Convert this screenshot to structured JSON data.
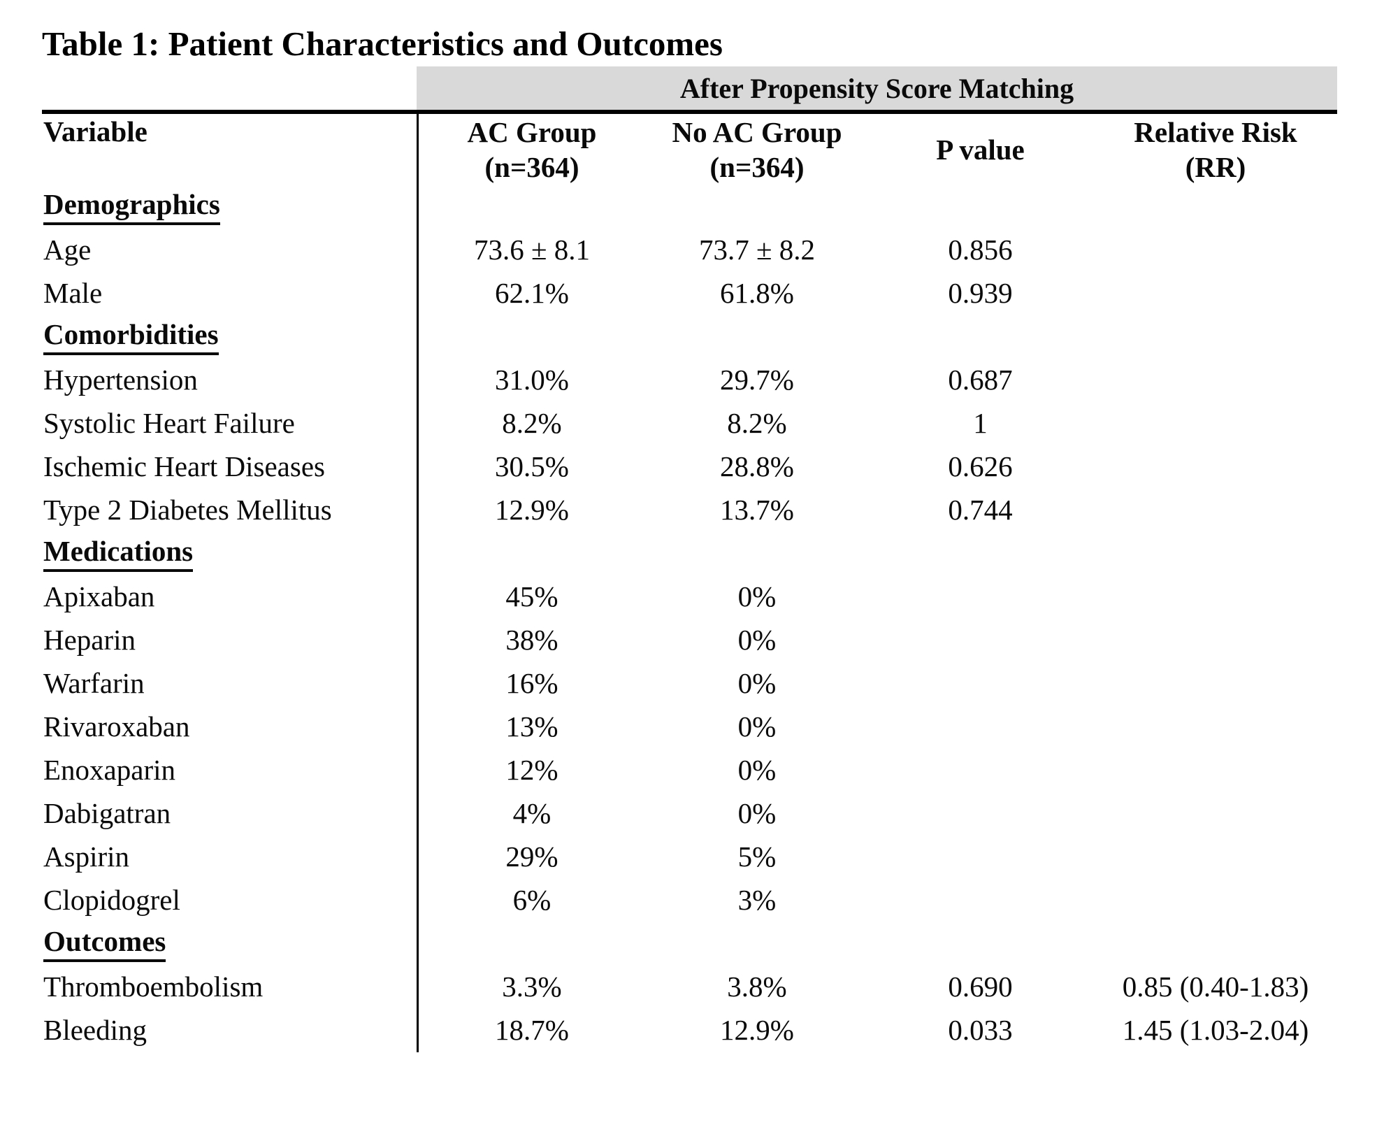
{
  "title": "Table 1: Patient Characteristics and Outcomes",
  "table": {
    "band_label": "After Propensity Score Matching",
    "band_bg": "#d9d9d9",
    "line_color": "#000000",
    "columns": {
      "variable": "Variable",
      "ac_line1": "AC Group",
      "ac_line2": "(n=364)",
      "noac_line1": "No AC Group",
      "noac_line2": "(n=364)",
      "p": "P value",
      "rr_line1": "Relative Risk",
      "rr_line2": "(RR)"
    },
    "rows": [
      {
        "type": "section",
        "label": "Demographics",
        "ac": "",
        "noac": "",
        "p": "",
        "rr": ""
      },
      {
        "type": "data",
        "label": "Age",
        "ac": "73.6 ± 8.1",
        "noac": "73.7 ± 8.2",
        "p": "0.856",
        "rr": ""
      },
      {
        "type": "data",
        "label": "Male",
        "ac": "62.1%",
        "noac": "61.8%",
        "p": "0.939",
        "rr": ""
      },
      {
        "type": "section",
        "label": "Comorbidities",
        "ac": "",
        "noac": "",
        "p": "",
        "rr": ""
      },
      {
        "type": "data",
        "label": "Hypertension",
        "ac": "31.0%",
        "noac": "29.7%",
        "p": "0.687",
        "rr": ""
      },
      {
        "type": "data",
        "label": "Systolic Heart Failure",
        "ac": "8.2%",
        "noac": "8.2%",
        "p": "1",
        "rr": ""
      },
      {
        "type": "data",
        "label": "Ischemic Heart Diseases",
        "ac": "30.5%",
        "noac": "28.8%",
        "p": "0.626",
        "rr": ""
      },
      {
        "type": "data",
        "label": "Type 2 Diabetes Mellitus",
        "ac": "12.9%",
        "noac": "13.7%",
        "p": "0.744",
        "rr": ""
      },
      {
        "type": "section",
        "label": "Medications",
        "ac": "",
        "noac": "",
        "p": "",
        "rr": ""
      },
      {
        "type": "data",
        "label": "Apixaban",
        "ac": "45%",
        "noac": "0%",
        "p": "",
        "rr": ""
      },
      {
        "type": "data",
        "label": "Heparin",
        "ac": "38%",
        "noac": "0%",
        "p": "",
        "rr": ""
      },
      {
        "type": "data",
        "label": "Warfarin",
        "ac": "16%",
        "noac": "0%",
        "p": "",
        "rr": ""
      },
      {
        "type": "data",
        "label": "Rivaroxaban",
        "ac": "13%",
        "noac": "0%",
        "p": "",
        "rr": ""
      },
      {
        "type": "data",
        "label": "Enoxaparin",
        "ac": "12%",
        "noac": "0%",
        "p": "",
        "rr": ""
      },
      {
        "type": "data",
        "label": "Dabigatran",
        "ac": "4%",
        "noac": "0%",
        "p": "",
        "rr": ""
      },
      {
        "type": "data",
        "label": "Aspirin",
        "ac": "29%",
        "noac": "5%",
        "p": "",
        "rr": ""
      },
      {
        "type": "data",
        "label": "Clopidogrel",
        "ac": "6%",
        "noac": "3%",
        "p": "",
        "rr": ""
      },
      {
        "type": "section",
        "label": "Outcomes",
        "ac": "",
        "noac": "",
        "p": "",
        "rr": ""
      },
      {
        "type": "data",
        "label": "Thromboembolism",
        "ac": "3.3%",
        "noac": "3.8%",
        "p": "0.690",
        "rr": "0.85 (0.40-1.83)"
      },
      {
        "type": "data",
        "label": "Bleeding",
        "ac": "18.7%",
        "noac": "12.9%",
        "p": "0.033",
        "rr": "1.45 (1.03-2.04)"
      }
    ]
  }
}
